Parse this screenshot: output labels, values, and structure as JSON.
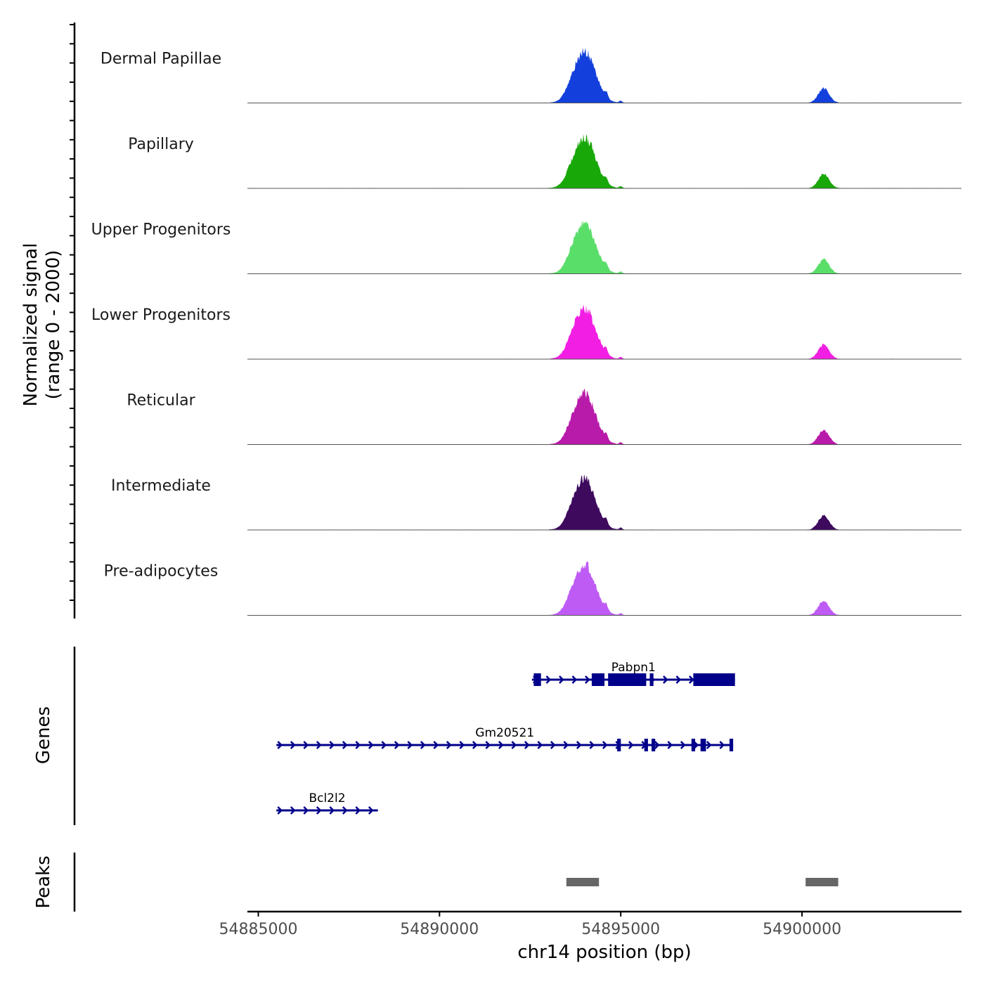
{
  "chart_data": {
    "type": "area",
    "title": "",
    "ylabel": [
      "Normalized signal",
      "(range 0 - 2000)"
    ],
    "xlabel": "chr14 position (bp)",
    "xlim": [
      54884700,
      54904400
    ],
    "ylim": [
      0,
      2000
    ],
    "x_ticks": [
      54885000,
      54890000,
      54895000,
      54900000
    ],
    "x_tick_labels": [
      "54885000",
      "54890000",
      "54895000",
      "54900000"
    ],
    "tracks": [
      {
        "name": "Dermal Papillae",
        "color": "#1340DC"
      },
      {
        "name": "Papillary",
        "color": "#18A808"
      },
      {
        "name": "Upper Progenitors",
        "color": "#5ADE6A"
      },
      {
        "name": "Lower Progenitors",
        "color": "#F21EE3"
      },
      {
        "name": "Reticular",
        "color": "#B81AAA"
      },
      {
        "name": "Intermediate",
        "color": "#3D0A5E"
      },
      {
        "name": "Pre-adipocytes",
        "color": "#BF5BF5"
      }
    ],
    "signal_peaks": [
      {
        "center": 54894000,
        "height": 2000,
        "width": 300
      },
      {
        "center": 54900600,
        "height": 560,
        "width": 150
      }
    ],
    "genes_panel_label": "Genes",
    "peaks_panel_label": "Peaks",
    "gene_color": "#00008B",
    "genes": [
      {
        "name": "Pabpn1",
        "start": 54892550,
        "end": 54898150,
        "row": 0,
        "exons": [
          [
            54892600,
            54892800
          ],
          [
            54894200,
            54894550
          ],
          [
            54894650,
            54895700
          ],
          [
            54895800,
            54895900
          ],
          [
            54897000,
            54898150
          ]
        ]
      },
      {
        "name": "Gm20521",
        "start": 54885500,
        "end": 54898100,
        "row": 1,
        "exons": [
          [
            54894900,
            54895000
          ],
          [
            54895650,
            54895750
          ],
          [
            54895850,
            54895950
          ],
          [
            54896950,
            54897050
          ],
          [
            54897200,
            54897350
          ],
          [
            54898000,
            54898100
          ]
        ]
      },
      {
        "name": "Bcl2l2",
        "start": 54885500,
        "end": 54888300,
        "row": 2,
        "exons": []
      }
    ],
    "peaks": [
      [
        54893500,
        54894400
      ],
      [
        54900100,
        54901000
      ]
    ],
    "peak_color": "#666666"
  }
}
